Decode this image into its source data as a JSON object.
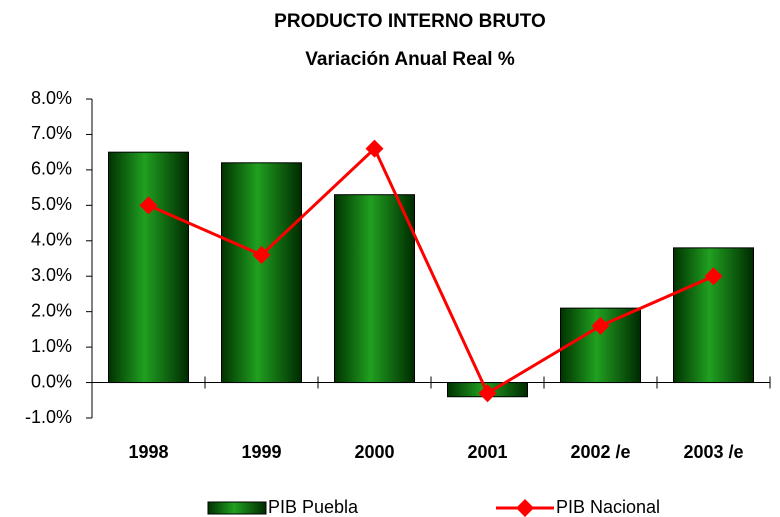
{
  "chart_data": {
    "type": "combo",
    "title": "PRODUCTO INTERNO BRUTO",
    "subtitle": "Variación Anual Real %",
    "categories": [
      "1998",
      "1999",
      "2000",
      "2001",
      "2002 /e",
      "2003 /e"
    ],
    "series": [
      {
        "name": "PIB Puebla",
        "type": "bar",
        "color": "#008000",
        "values": [
          6.5,
          6.2,
          5.3,
          -0.4,
          2.1,
          3.8
        ]
      },
      {
        "name": "PIB Nacional",
        "type": "line",
        "color": "#ff0000",
        "values": [
          5.0,
          3.6,
          6.6,
          -0.3,
          1.6,
          3.0
        ]
      }
    ],
    "ylim": [
      -1,
      8
    ],
    "yticks": [
      {
        "value": -1,
        "label": "-1.0%"
      },
      {
        "value": 0,
        "label": "0.0%"
      },
      {
        "value": 1,
        "label": "1.0%"
      },
      {
        "value": 2,
        "label": "2.0%"
      },
      {
        "value": 3,
        "label": "3.0%"
      },
      {
        "value": 4,
        "label": "4.0%"
      },
      {
        "value": 5,
        "label": "5.0%"
      },
      {
        "value": 6,
        "label": "6.0%"
      },
      {
        "value": 7,
        "label": "7.0%"
      },
      {
        "value": 8,
        "label": "8.0%"
      }
    ],
    "legend": "bottom"
  }
}
